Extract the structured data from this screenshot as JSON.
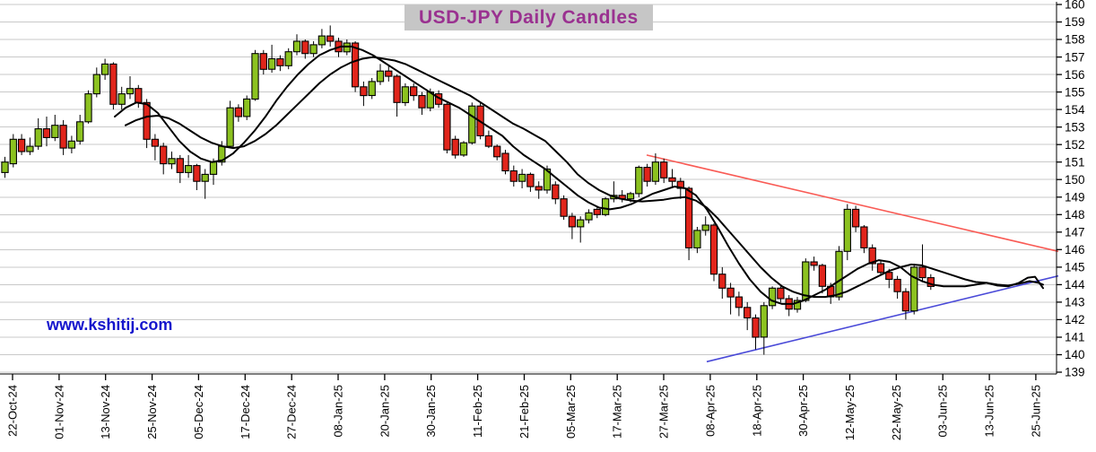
{
  "title": "USD-JPY Daily Candles",
  "watermark": "www.kshitij.com",
  "colors": {
    "up_candle": "#8cc220",
    "down_candle": "#e1251b",
    "candle_outline": "#000000",
    "grid": "#c9c9c9",
    "moving_average": "#000000",
    "resistance_trendline": "#f95b55",
    "support_trendline": "#4a4ad8",
    "axis": "#000000",
    "title_bg": "#c6c6c6",
    "title_fg": "#9a3190",
    "watermark_fg": "#1414cc"
  },
  "chart_data": {
    "type": "candlestick",
    "title": "USD-JPY Daily Candles",
    "ylabel": "",
    "xlabel": "",
    "ylim": [
      139,
      160
    ],
    "grid": true,
    "y_tick_labels": [
      139,
      140,
      141,
      142,
      143,
      144,
      145,
      146,
      147,
      148,
      149,
      150,
      151,
      152,
      153,
      154,
      155,
      156,
      157,
      158,
      159,
      160
    ],
    "x_tick_labels": [
      "22-Oct-24",
      "01-Nov-24",
      "13-Nov-24",
      "25-Nov-24",
      "05-Dec-24",
      "17-Dec-24",
      "27-Dec-24",
      "08-Jan-25",
      "20-Jan-25",
      "30-Jan-25",
      "11-Feb-25",
      "21-Feb-25",
      "05-Mar-25",
      "17-Mar-25",
      "27-Mar-25",
      "08-Apr-25",
      "18-Apr-25",
      "30-Apr-25",
      "12-May-25",
      "22-May-25",
      "03-Jun-25",
      "13-Jun-25",
      "25-Jun-25"
    ],
    "candles_ohlc": [
      [
        150.4,
        151.3,
        150.1,
        151.0
      ],
      [
        150.9,
        152.6,
        150.7,
        152.3
      ],
      [
        152.3,
        152.6,
        151.4,
        151.6
      ],
      [
        151.6,
        152.4,
        151.4,
        151.9
      ],
      [
        151.9,
        153.5,
        151.7,
        152.9
      ],
      [
        152.9,
        153.6,
        151.9,
        152.4
      ],
      [
        152.4,
        153.7,
        152.2,
        153.1
      ],
      [
        153.1,
        153.4,
        151.4,
        151.8
      ],
      [
        151.8,
        152.5,
        151.5,
        152.2
      ],
      [
        152.2,
        153.7,
        152.0,
        153.3
      ],
      [
        153.3,
        155.1,
        153.2,
        154.9
      ],
      [
        154.9,
        156.4,
        154.7,
        156.0
      ],
      [
        156.0,
        156.9,
        155.7,
        156.6
      ],
      [
        156.6,
        156.7,
        154.0,
        154.3
      ],
      [
        154.3,
        155.3,
        154.0,
        154.9
      ],
      [
        154.9,
        155.9,
        154.6,
        155.2
      ],
      [
        155.2,
        155.4,
        154.1,
        154.4
      ],
      [
        154.4,
        154.6,
        151.8,
        152.3
      ],
      [
        152.3,
        152.6,
        151.1,
        151.9
      ],
      [
        151.9,
        152.1,
        150.3,
        150.9
      ],
      [
        150.9,
        151.6,
        150.6,
        151.2
      ],
      [
        151.2,
        151.4,
        149.8,
        150.4
      ],
      [
        150.4,
        151.4,
        150.1,
        150.8
      ],
      [
        150.8,
        150.9,
        149.4,
        149.9
      ],
      [
        149.9,
        150.6,
        148.9,
        150.3
      ],
      [
        150.3,
        151.2,
        149.7,
        151.0
      ],
      [
        151.0,
        152.2,
        150.8,
        151.9
      ],
      [
        151.9,
        154.5,
        151.8,
        154.1
      ],
      [
        154.1,
        154.3,
        153.3,
        153.6
      ],
      [
        153.6,
        154.8,
        153.4,
        154.6
      ],
      [
        154.6,
        157.4,
        154.5,
        157.2
      ],
      [
        157.2,
        157.4,
        156.0,
        156.3
      ],
      [
        156.3,
        157.7,
        156.1,
        156.9
      ],
      [
        156.9,
        157.1,
        156.2,
        156.5
      ],
      [
        156.5,
        157.5,
        156.3,
        157.3
      ],
      [
        157.3,
        158.3,
        157.1,
        157.9
      ],
      [
        157.9,
        158.0,
        156.9,
        157.2
      ],
      [
        157.2,
        157.9,
        157.0,
        157.7
      ],
      [
        157.7,
        158.6,
        157.5,
        158.2
      ],
      [
        158.2,
        158.8,
        157.6,
        157.9
      ],
      [
        157.9,
        158.1,
        157.0,
        157.3
      ],
      [
        157.3,
        158.0,
        157.1,
        157.8
      ],
      [
        157.8,
        157.9,
        155.0,
        155.3
      ],
      [
        155.3,
        155.6,
        154.2,
        154.8
      ],
      [
        154.8,
        155.8,
        154.6,
        155.6
      ],
      [
        155.6,
        156.6,
        155.4,
        156.2
      ],
      [
        156.2,
        156.5,
        155.6,
        155.9
      ],
      [
        155.9,
        156.0,
        153.6,
        154.4
      ],
      [
        154.4,
        155.5,
        154.2,
        155.3
      ],
      [
        155.3,
        155.5,
        154.5,
        154.8
      ],
      [
        154.8,
        155.0,
        153.7,
        154.1
      ],
      [
        154.1,
        155.2,
        153.9,
        155.0
      ],
      [
        154.9,
        155.1,
        154.1,
        154.3
      ],
      [
        154.3,
        154.4,
        151.5,
        151.7
      ],
      [
        152.3,
        152.5,
        151.2,
        151.4
      ],
      [
        151.4,
        152.2,
        151.3,
        152.1
      ],
      [
        152.1,
        154.4,
        152.0,
        154.2
      ],
      [
        154.2,
        154.4,
        152.3,
        152.5
      ],
      [
        152.5,
        152.8,
        151.8,
        151.9
      ],
      [
        151.9,
        152.0,
        151.1,
        151.3
      ],
      [
        151.5,
        151.7,
        150.3,
        150.5
      ],
      [
        150.5,
        150.8,
        149.6,
        149.9
      ],
      [
        149.9,
        150.6,
        149.5,
        150.3
      ],
      [
        150.3,
        150.4,
        149.3,
        149.6
      ],
      [
        149.6,
        149.9,
        148.9,
        149.4
      ],
      [
        149.4,
        150.8,
        149.2,
        150.6
      ],
      [
        149.7,
        149.9,
        148.6,
        148.9
      ],
      [
        148.9,
        149.1,
        147.7,
        147.9
      ],
      [
        147.9,
        148.1,
        146.6,
        147.3
      ],
      [
        147.3,
        147.9,
        146.4,
        147.7
      ],
      [
        147.7,
        148.3,
        147.5,
        148.1
      ],
      [
        148.3,
        148.5,
        147.8,
        148.0
      ],
      [
        148.0,
        149.0,
        147.9,
        148.9
      ],
      [
        148.9,
        149.9,
        148.7,
        149.1
      ],
      [
        149.1,
        149.4,
        148.7,
        148.9
      ],
      [
        148.9,
        149.3,
        148.7,
        149.2
      ],
      [
        149.2,
        150.8,
        149.0,
        150.7
      ],
      [
        150.7,
        150.9,
        149.6,
        149.9
      ],
      [
        149.9,
        151.5,
        149.7,
        151.0
      ],
      [
        151.0,
        151.2,
        149.8,
        150.1
      ],
      [
        150.1,
        150.6,
        149.6,
        149.9
      ],
      [
        149.9,
        150.1,
        148.9,
        149.5
      ],
      [
        149.5,
        149.6,
        145.4,
        146.1
      ],
      [
        146.1,
        147.3,
        145.8,
        147.1
      ],
      [
        147.1,
        147.9,
        146.8,
        147.4
      ],
      [
        147.4,
        147.5,
        144.2,
        144.6
      ],
      [
        144.6,
        145.0,
        143.2,
        143.8
      ],
      [
        143.8,
        144.1,
        142.3,
        143.3
      ],
      [
        143.3,
        143.6,
        142.2,
        142.7
      ],
      [
        142.7,
        143.0,
        141.4,
        142.1
      ],
      [
        142.1,
        142.3,
        140.3,
        141.0
      ],
      [
        141.0,
        143.0,
        140.0,
        142.8
      ],
      [
        142.8,
        143.9,
        142.6,
        143.8
      ],
      [
        143.8,
        143.9,
        143.0,
        143.2
      ],
      [
        143.2,
        143.4,
        142.2,
        142.6
      ],
      [
        142.6,
        143.3,
        142.4,
        143.1
      ],
      [
        143.1,
        145.5,
        143.0,
        145.3
      ],
      [
        145.3,
        145.6,
        144.8,
        145.1
      ],
      [
        145.1,
        145.2,
        143.5,
        143.9
      ],
      [
        143.9,
        144.1,
        142.9,
        143.3
      ],
      [
        143.3,
        146.2,
        143.1,
        145.9
      ],
      [
        145.9,
        148.6,
        145.4,
        148.3
      ],
      [
        148.3,
        148.5,
        147.0,
        147.3
      ],
      [
        147.3,
        147.4,
        145.8,
        146.1
      ],
      [
        146.1,
        146.3,
        144.8,
        145.2
      ],
      [
        145.2,
        145.4,
        144.5,
        144.7
      ],
      [
        144.7,
        144.9,
        143.8,
        144.3
      ],
      [
        144.3,
        144.5,
        143.2,
        143.6
      ],
      [
        143.6,
        143.8,
        142.0,
        142.5
      ],
      [
        142.5,
        145.2,
        142.3,
        145.0
      ],
      [
        145.0,
        146.3,
        144.2,
        144.4
      ],
      [
        144.4,
        144.6,
        143.7,
        143.9
      ]
    ],
    "ma_fast_points": [
      [
        128,
        153.6
      ],
      [
        140,
        154.1
      ],
      [
        152,
        154.4
      ],
      [
        164,
        154.3
      ],
      [
        176,
        153.8
      ],
      [
        188,
        153.0
      ],
      [
        200,
        152.2
      ],
      [
        212,
        151.6
      ],
      [
        224,
        151.2
      ],
      [
        236,
        151.0
      ],
      [
        248,
        151.1
      ],
      [
        260,
        151.5
      ],
      [
        272,
        152.1
      ],
      [
        284,
        152.8
      ],
      [
        296,
        153.6
      ],
      [
        308,
        154.5
      ],
      [
        320,
        155.3
      ],
      [
        332,
        156.0
      ],
      [
        344,
        156.6
      ],
      [
        356,
        157.1
      ],
      [
        368,
        157.4
      ],
      [
        380,
        157.6
      ],
      [
        392,
        157.6
      ],
      [
        404,
        157.4
      ],
      [
        416,
        157.1
      ],
      [
        428,
        156.7
      ],
      [
        440,
        156.3
      ],
      [
        452,
        155.9
      ],
      [
        464,
        155.5
      ],
      [
        476,
        155.1
      ],
      [
        488,
        154.7
      ],
      [
        500,
        154.4
      ],
      [
        512,
        154.1
      ],
      [
        524,
        153.7
      ],
      [
        536,
        153.3
      ],
      [
        548,
        152.9
      ],
      [
        560,
        152.5
      ],
      [
        572,
        151.9
      ],
      [
        584,
        151.4
      ],
      [
        596,
        151.0
      ],
      [
        608,
        150.6
      ],
      [
        620,
        150.1
      ],
      [
        632,
        149.6
      ],
      [
        644,
        149.1
      ],
      [
        656,
        148.7
      ],
      [
        668,
        148.4
      ],
      [
        680,
        148.3
      ],
      [
        692,
        148.4
      ],
      [
        704,
        148.6
      ],
      [
        716,
        148.9
      ],
      [
        728,
        149.2
      ],
      [
        740,
        149.4
      ],
      [
        752,
        149.6
      ],
      [
        764,
        149.5
      ],
      [
        776,
        149.1
      ],
      [
        788,
        148.3
      ],
      [
        800,
        147.3
      ],
      [
        812,
        146.2
      ],
      [
        824,
        145.2
      ],
      [
        836,
        144.3
      ],
      [
        848,
        143.6
      ],
      [
        860,
        143.1
      ],
      [
        872,
        142.9
      ],
      [
        884,
        142.9
      ],
      [
        896,
        143.1
      ],
      [
        908,
        143.4
      ],
      [
        920,
        143.7
      ],
      [
        932,
        144.1
      ],
      [
        944,
        144.5
      ],
      [
        956,
        144.9
      ],
      [
        968,
        145.2
      ],
      [
        980,
        145.4
      ],
      [
        992,
        145.3
      ],
      [
        1004,
        145.0
      ],
      [
        1016,
        144.5
      ],
      [
        1028,
        144.2
      ],
      [
        1040,
        144.0
      ],
      [
        1052,
        143.9
      ],
      [
        1064,
        143.9
      ],
      [
        1076,
        143.9
      ],
      [
        1088,
        144.0
      ],
      [
        1100,
        144.1
      ],
      [
        1112,
        143.95
      ],
      [
        1124,
        143.9
      ],
      [
        1136,
        144.1
      ],
      [
        1146,
        144.4
      ],
      [
        1154,
        144.45
      ],
      [
        1163,
        143.8
      ]
    ],
    "ma_slow_points": [
      [
        140,
        153.1
      ],
      [
        152,
        153.4
      ],
      [
        164,
        153.6
      ],
      [
        176,
        153.65
      ],
      [
        188,
        153.5
      ],
      [
        200,
        153.2
      ],
      [
        212,
        152.8
      ],
      [
        224,
        152.4
      ],
      [
        236,
        152.1
      ],
      [
        248,
        151.9
      ],
      [
        260,
        151.8
      ],
      [
        272,
        151.9
      ],
      [
        284,
        152.2
      ],
      [
        296,
        152.6
      ],
      [
        308,
        153.1
      ],
      [
        320,
        153.7
      ],
      [
        332,
        154.3
      ],
      [
        344,
        154.9
      ],
      [
        356,
        155.5
      ],
      [
        368,
        156.0
      ],
      [
        380,
        156.4
      ],
      [
        392,
        156.7
      ],
      [
        404,
        156.9
      ],
      [
        416,
        157.0
      ],
      [
        428,
        156.9
      ],
      [
        440,
        156.8
      ],
      [
        452,
        156.6
      ],
      [
        464,
        156.3
      ],
      [
        476,
        156.0
      ],
      [
        488,
        155.7
      ],
      [
        500,
        155.4
      ],
      [
        512,
        155.1
      ],
      [
        524,
        154.8
      ],
      [
        536,
        154.4
      ],
      [
        548,
        154.0
      ],
      [
        560,
        153.6
      ],
      [
        572,
        153.2
      ],
      [
        584,
        152.9
      ],
      [
        596,
        152.55
      ],
      [
        608,
        152.2
      ],
      [
        620,
        151.6
      ],
      [
        632,
        151.0
      ],
      [
        644,
        150.3
      ],
      [
        656,
        149.8
      ],
      [
        668,
        149.4
      ],
      [
        680,
        149.1
      ],
      [
        692,
        148.9
      ],
      [
        704,
        148.8
      ],
      [
        716,
        148.75
      ],
      [
        728,
        148.8
      ],
      [
        740,
        148.85
      ],
      [
        752,
        148.95
      ],
      [
        764,
        149.0
      ],
      [
        776,
        148.8
      ],
      [
        788,
        148.4
      ],
      [
        800,
        147.8
      ],
      [
        812,
        147.1
      ],
      [
        824,
        146.4
      ],
      [
        836,
        145.7
      ],
      [
        848,
        145.0
      ],
      [
        860,
        144.4
      ],
      [
        872,
        143.9
      ],
      [
        884,
        143.6
      ],
      [
        896,
        143.4
      ],
      [
        908,
        143.3
      ],
      [
        920,
        143.3
      ],
      [
        932,
        143.4
      ],
      [
        944,
        143.6
      ],
      [
        956,
        143.9
      ],
      [
        968,
        144.2
      ],
      [
        980,
        144.5
      ],
      [
        992,
        144.8
      ],
      [
        1004,
        145.0
      ],
      [
        1016,
        145.15
      ],
      [
        1028,
        145.1
      ],
      [
        1040,
        144.9
      ],
      [
        1052,
        144.7
      ],
      [
        1064,
        144.5
      ],
      [
        1076,
        144.3
      ],
      [
        1088,
        144.15
      ],
      [
        1100,
        144.1
      ],
      [
        1112,
        144.0
      ],
      [
        1124,
        143.95
      ],
      [
        1136,
        144.05
      ],
      [
        1148,
        144.2
      ],
      [
        1158,
        144.1
      ],
      [
        1163,
        144.0
      ]
    ],
    "trendlines": [
      {
        "name": "descending-resistance",
        "color": "#f95b55",
        "points": [
          [
            721,
            151.4
          ],
          [
            1180,
            145.9
          ]
        ]
      },
      {
        "name": "ascending-support",
        "color": "#4a4ad8",
        "points": [
          [
            788,
            139.6
          ],
          [
            1180,
            144.5
          ]
        ]
      }
    ],
    "legend_position": "none"
  }
}
